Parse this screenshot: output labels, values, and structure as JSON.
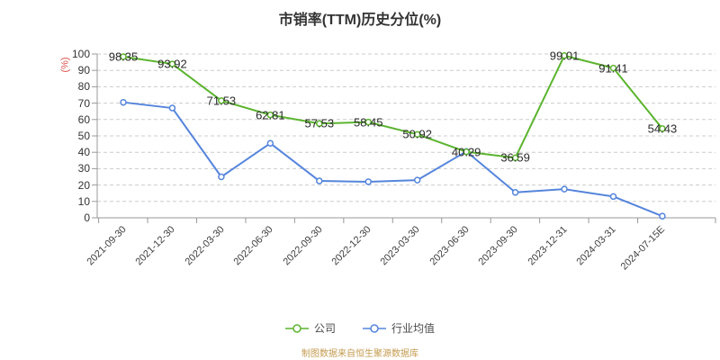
{
  "chart_data": {
    "type": "line",
    "title": "市销率(TTM)历史分位(%)",
    "xlabel": "",
    "ylabel": "(%)",
    "ylabel_color": "#d9534f",
    "ylim": [
      0,
      100
    ],
    "y_tick_step": 10,
    "grid": true,
    "grid_style": "dashed",
    "legend_position": "bottom",
    "x_label_rotation": -45,
    "categories": [
      "2021-09-30",
      "2021-12-30",
      "2022-03-30",
      "2022-06-30",
      "2022-09-30",
      "2022-12-30",
      "2023-03-30",
      "2023-06-30",
      "2023-09-30",
      "2023-12-31",
      "2024-03-31",
      "2024-07-15E"
    ],
    "series": [
      {
        "name": "公司",
        "color": "#5bb42e",
        "show_labels": true,
        "values": [
          98.35,
          93.92,
          71.53,
          62.81,
          57.53,
          58.45,
          50.92,
          40.29,
          36.59,
          99.01,
          91.41,
          54.43
        ]
      },
      {
        "name": "行业均值",
        "color": "#5585dc",
        "show_labels": false,
        "values": [
          70.5,
          67,
          25,
          45.5,
          22.5,
          22,
          23,
          40.5,
          15.5,
          17.5,
          13,
          1
        ]
      }
    ]
  },
  "legend": {
    "items": [
      {
        "label": "公司",
        "color": "#5bb42e"
      },
      {
        "label": "行业均值",
        "color": "#5585dc"
      }
    ]
  },
  "footer": {
    "text": "制图数据来自恒生聚源数据库",
    "color": "#c49b50"
  }
}
